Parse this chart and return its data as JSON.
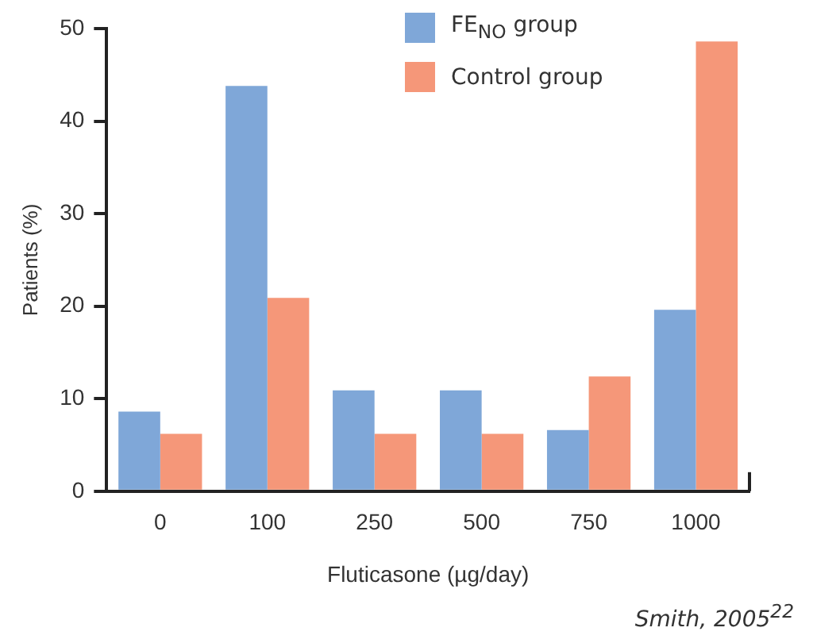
{
  "chart_data": {
    "type": "bar",
    "xlabel": "Fluticasone (µg/day)",
    "ylabel": "Patients (%)",
    "categories": [
      "0",
      "100",
      "250",
      "500",
      "750",
      "1000"
    ],
    "series": [
      {
        "name": "FE$_{NO}$ group",
        "color": "#7fa7d8",
        "values": [
          8.6,
          43.8,
          10.9,
          10.9,
          6.6,
          19.6
        ]
      },
      {
        "name": "Control group",
        "color": "#f59779",
        "values": [
          6.2,
          20.9,
          6.2,
          6.2,
          12.4,
          48.6
        ]
      }
    ],
    "ylim": [
      0,
      50
    ],
    "yticks": [
      0,
      10,
      20,
      30,
      40,
      50
    ],
    "grid": false,
    "legend": "top right",
    "annotations": [
      "Smith, 2005$^{22}$"
    ]
  }
}
